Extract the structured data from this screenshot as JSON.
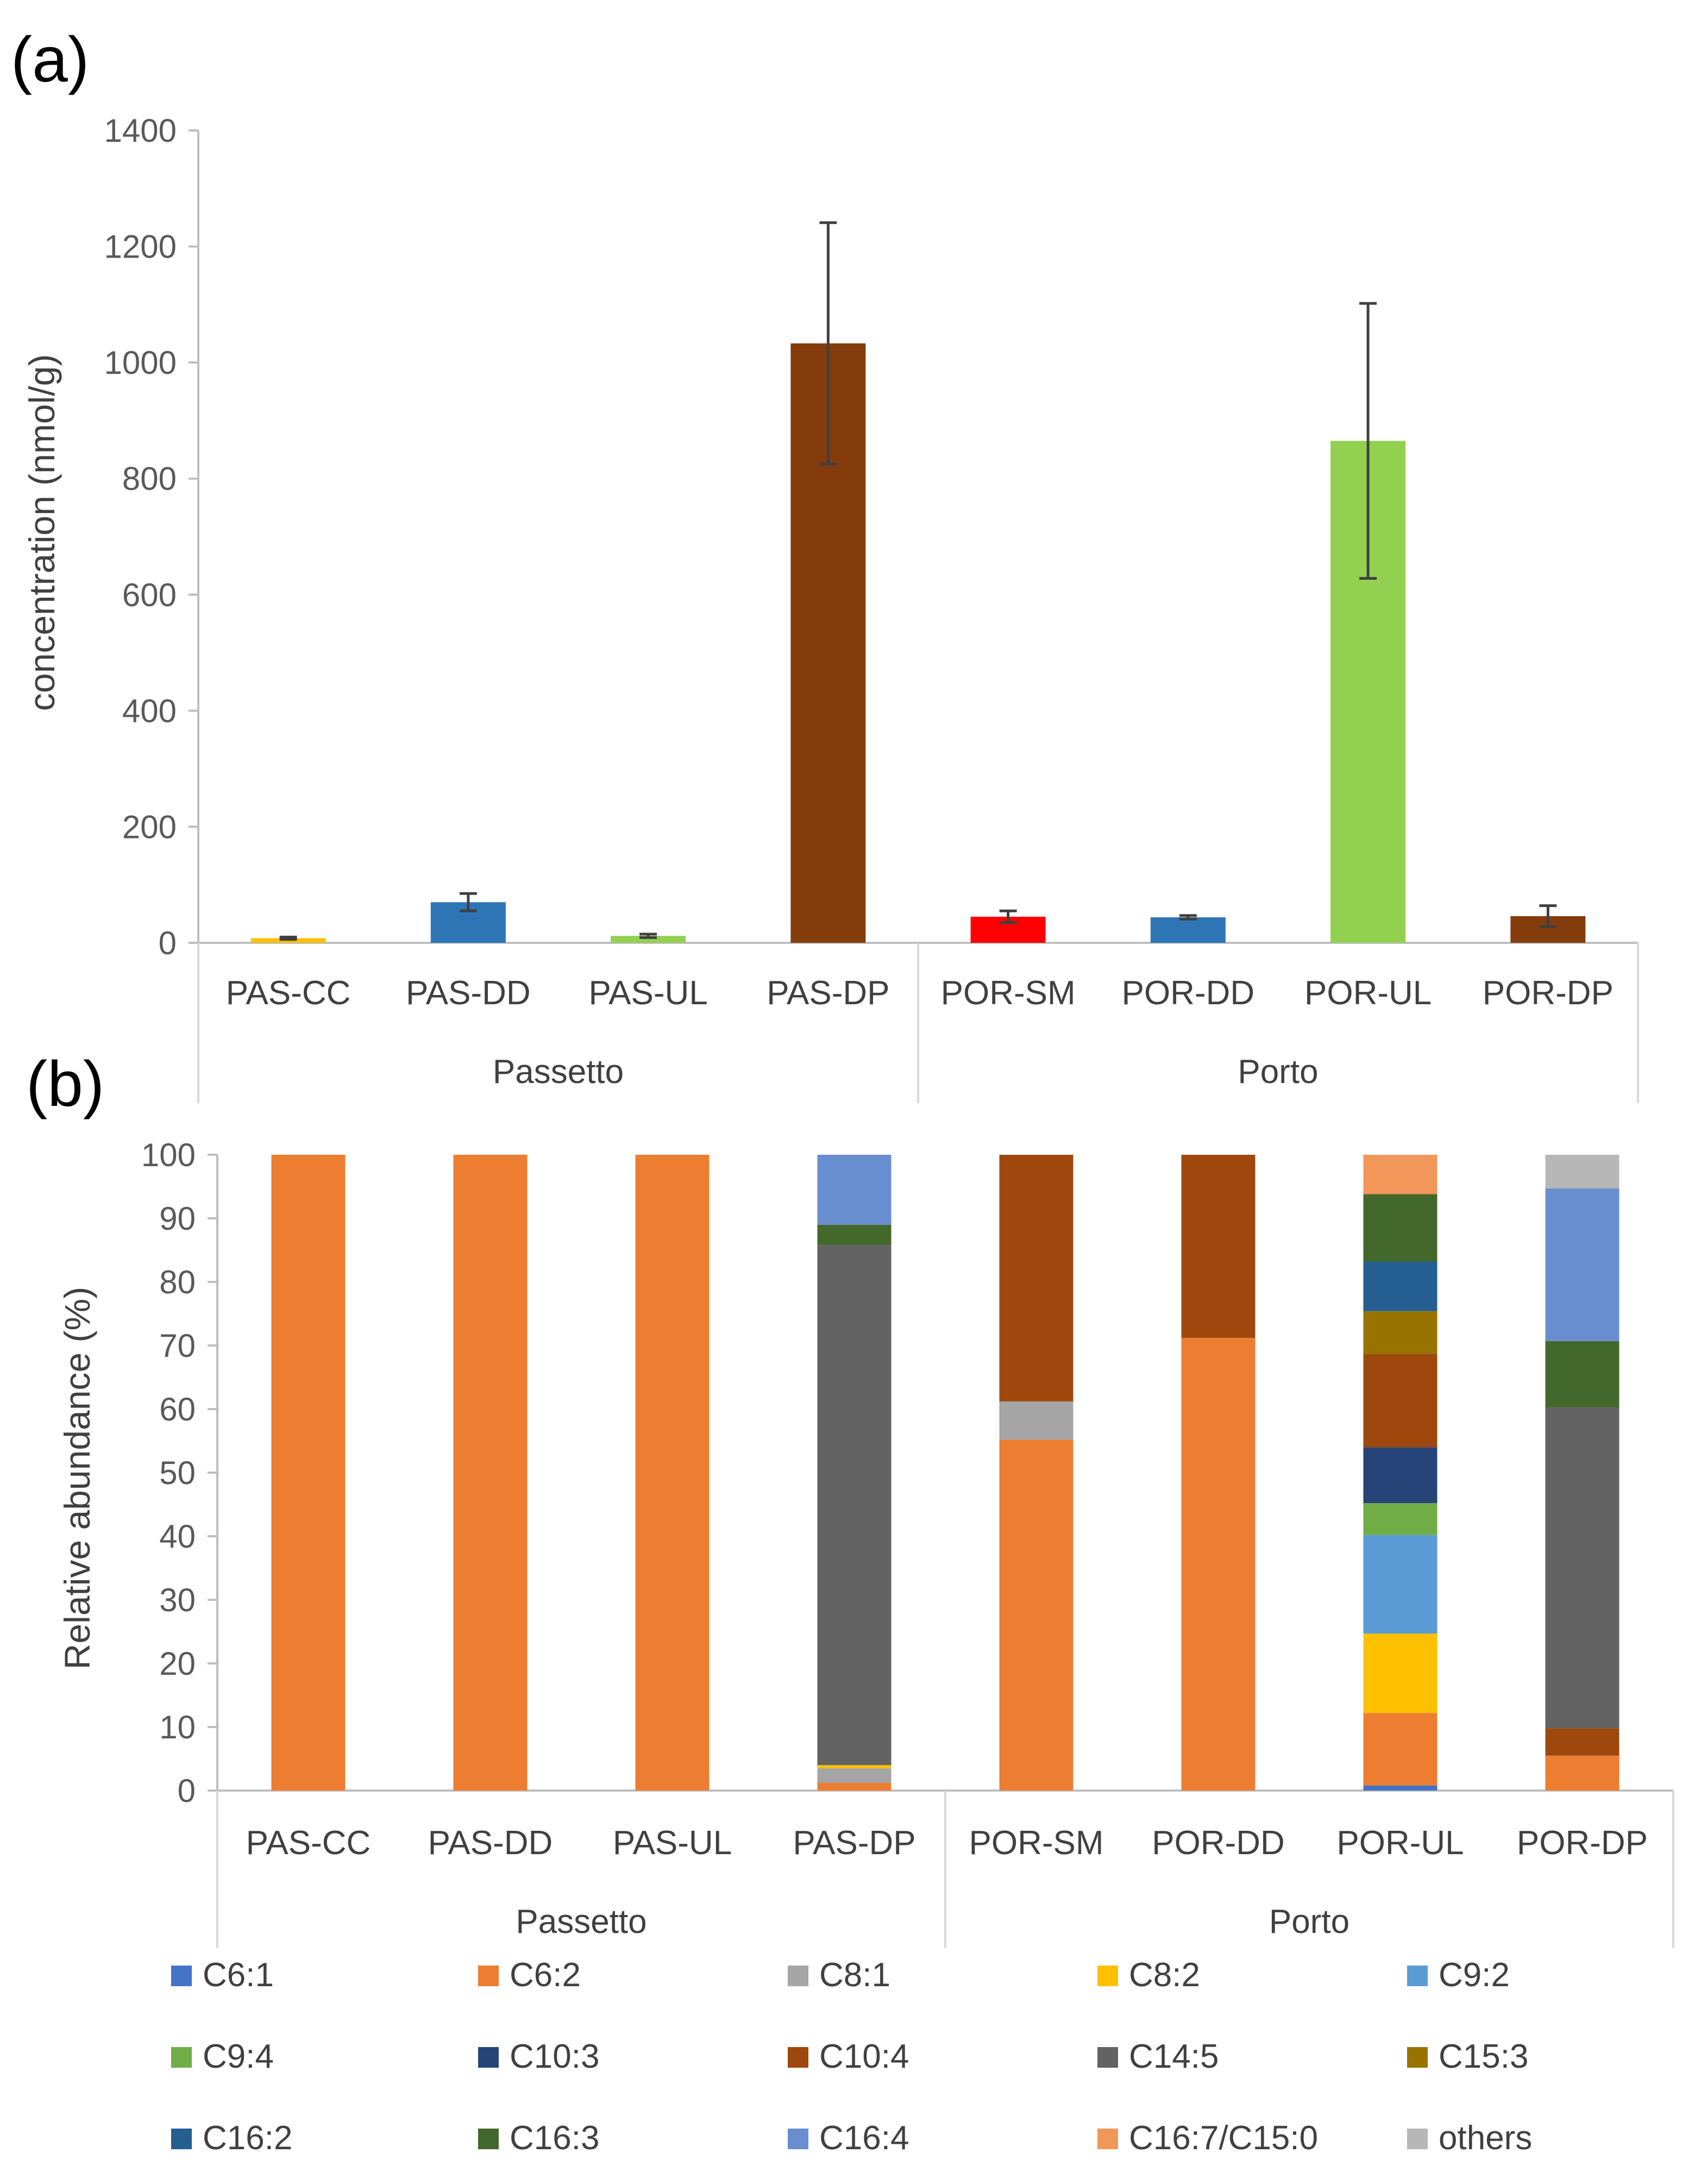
{
  "chart_data": [
    {
      "panel_label": "(a)",
      "type": "bar",
      "ylabel": "concentration (nmol/g)",
      "ylim": [
        0,
        1400
      ],
      "yticks": [
        "0",
        "200",
        "400",
        "600",
        "800",
        "1000",
        "1200",
        "1400"
      ],
      "categories": [
        "PAS-CC",
        "PAS-DD",
        "PAS-UL",
        "PAS-DP",
        "POR-SM",
        "POR-DD",
        "POR-UL",
        "POR-DP"
      ],
      "groups": [
        {
          "name": "Passetto",
          "span": [
            0,
            3
          ]
        },
        {
          "name": "Porto",
          "span": [
            4,
            7
          ]
        }
      ],
      "values": [
        8,
        70,
        12,
        1033,
        45,
        44,
        865,
        46
      ],
      "errors": [
        2,
        15,
        3,
        208,
        10,
        3,
        237,
        18
      ],
      "bar_colors": [
        "#FFC000",
        "#2E75B6",
        "#92D050",
        "#843C0C",
        "#FF0000",
        "#2E75B6",
        "#92D050",
        "#843C0C"
      ]
    },
    {
      "panel_label": "(b)",
      "type": "stacked_bar",
      "ylabel": "Relative abundance (%)",
      "ylim": [
        0,
        100
      ],
      "yticks": [
        "0",
        "10",
        "20",
        "30",
        "40",
        "50",
        "60",
        "70",
        "80",
        "90",
        "100"
      ],
      "categories": [
        "PAS-CC",
        "PAS-DD",
        "PAS-UL",
        "PAS-DP",
        "POR-SM",
        "POR-DD",
        "POR-UL",
        "POR-DP"
      ],
      "groups": [
        {
          "name": "Passetto",
          "span": [
            0,
            3
          ]
        },
        {
          "name": "Porto",
          "span": [
            4,
            7
          ]
        }
      ],
      "series": [
        {
          "name": "C6:1",
          "color": "#4472C4",
          "values": [
            0,
            0,
            0,
            0,
            0,
            0,
            0.8,
            0
          ]
        },
        {
          "name": "C6:2",
          "color": "#ED7D31",
          "values": [
            100,
            100,
            100,
            1.2,
            55.2,
            71.2,
            11.4,
            5.5
          ]
        },
        {
          "name": "C8:1",
          "color": "#A5A5A5",
          "values": [
            0,
            0,
            0,
            2.3,
            6,
            0,
            0,
            0
          ]
        },
        {
          "name": "C8:2",
          "color": "#FFC000",
          "values": [
            0,
            0,
            0,
            0.5,
            0,
            0,
            12.5,
            0
          ]
        },
        {
          "name": "C9:2",
          "color": "#5B9BD5",
          "values": [
            0,
            0,
            0,
            0,
            0,
            0,
            15.5,
            0
          ]
        },
        {
          "name": "C9:4",
          "color": "#70AD47",
          "values": [
            0,
            0,
            0,
            0,
            0,
            0,
            5,
            0
          ]
        },
        {
          "name": "C10:3",
          "color": "#264478",
          "values": [
            0,
            0,
            0,
            0,
            0,
            0,
            8.8,
            0
          ]
        },
        {
          "name": "C10:4",
          "color": "#9E480E",
          "values": [
            0,
            0,
            0,
            0,
            38.8,
            28.8,
            14.7,
            4.3
          ]
        },
        {
          "name": "C14:5",
          "color": "#636363",
          "values": [
            0,
            0,
            0,
            81.8,
            0,
            0,
            0,
            50.5
          ]
        },
        {
          "name": "C15:3",
          "color": "#997300",
          "values": [
            0,
            0,
            0,
            0,
            0,
            0,
            6.7,
            0
          ]
        },
        {
          "name": "C16:2",
          "color": "#255E91",
          "values": [
            0,
            0,
            0,
            0,
            0,
            0,
            7.8,
            0
          ]
        },
        {
          "name": "C16:3",
          "color": "#43682B",
          "values": [
            0,
            0,
            0,
            3.2,
            0,
            0,
            10.6,
            10.4
          ]
        },
        {
          "name": "C16:4",
          "color": "#698ED0",
          "values": [
            0,
            0,
            0,
            11,
            0,
            0,
            0,
            24
          ]
        },
        {
          "name": "C16:7/C15:0",
          "color": "#F1975A",
          "values": [
            0,
            0,
            0,
            0,
            0,
            0,
            6.2,
            0
          ]
        },
        {
          "name": "others",
          "color": "#B7B7B7",
          "values": [
            0,
            0,
            0,
            0,
            0,
            0,
            0,
            5.3
          ]
        }
      ]
    }
  ]
}
